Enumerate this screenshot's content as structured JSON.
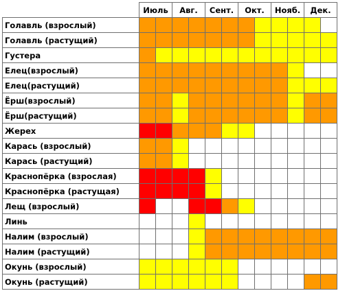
{
  "colors": {
    "peak": "#ff0000",
    "good": "#ff9900",
    "fair": "#ffff00",
    "none": "#ffffff"
  },
  "months": [
    "Июль",
    "Авг.",
    "Сент.",
    "Окт.",
    "Нояб.",
    "Дек."
  ],
  "rows": [
    {
      "name": "Голавль (взрослый)",
      "cells": [
        "good",
        "good",
        "good",
        "good",
        "good",
        "good",
        "good",
        "fair",
        "fair",
        "fair",
        "fair",
        "none"
      ]
    },
    {
      "name": "Голавль (растущий)",
      "cells": [
        "good",
        "good",
        "good",
        "good",
        "good",
        "good",
        "good",
        "fair",
        "fair",
        "fair",
        "fair",
        "fair"
      ]
    },
    {
      "name": "Густера",
      "cells": [
        "good",
        "fair",
        "fair",
        "fair",
        "fair",
        "fair",
        "fair",
        "fair",
        "fair",
        "fair",
        "fair",
        "fair"
      ]
    },
    {
      "name": "Елец(взрослый)",
      "cells": [
        "good",
        "good",
        "good",
        "good",
        "good",
        "good",
        "good",
        "good",
        "good",
        "fair",
        "none",
        "none"
      ]
    },
    {
      "name": "Елец(растущий)",
      "cells": [
        "good",
        "good",
        "good",
        "good",
        "good",
        "good",
        "good",
        "good",
        "good",
        "fair",
        "fair",
        "fair"
      ]
    },
    {
      "name": "Ёрш(взрослый)",
      "cells": [
        "good",
        "good",
        "fair",
        "good",
        "good",
        "good",
        "good",
        "good",
        "good",
        "fair",
        "good",
        "good"
      ]
    },
    {
      "name": "Ёрш(растущий)",
      "cells": [
        "good",
        "good",
        "fair",
        "good",
        "good",
        "good",
        "good",
        "good",
        "good",
        "fair",
        "good",
        "good"
      ]
    },
    {
      "name": "Жерех",
      "cells": [
        "peak",
        "peak",
        "good",
        "good",
        "good",
        "fair",
        "fair",
        "none",
        "none",
        "none",
        "none",
        "none"
      ]
    },
    {
      "name": "Карась (взрослый)",
      "cells": [
        "good",
        "good",
        "fair",
        "none",
        "none",
        "none",
        "none",
        "none",
        "none",
        "none",
        "none",
        "none"
      ]
    },
    {
      "name": "Карась (растущий)",
      "cells": [
        "good",
        "good",
        "fair",
        "none",
        "none",
        "none",
        "none",
        "none",
        "none",
        "none",
        "none",
        "none"
      ]
    },
    {
      "name": "Краснопёрка (взрослая)",
      "cells": [
        "peak",
        "peak",
        "peak",
        "peak",
        "fair",
        "none",
        "none",
        "none",
        "none",
        "none",
        "none",
        "none"
      ]
    },
    {
      "name": "Краснопёрка (растущая)",
      "cells": [
        "peak",
        "peak",
        "peak",
        "peak",
        "fair",
        "none",
        "none",
        "none",
        "none",
        "none",
        "none",
        "none"
      ]
    },
    {
      "name": "Лещ (взрослый)",
      "cells": [
        "peak",
        "none",
        "none",
        "peak",
        "peak",
        "good",
        "fair",
        "none",
        "none",
        "none",
        "none",
        "none"
      ]
    },
    {
      "name": "Линь",
      "cells": [
        "none",
        "none",
        "none",
        "fair",
        "none",
        "none",
        "none",
        "none",
        "none",
        "none",
        "none",
        "none"
      ]
    },
    {
      "name": "Налим (взрослый)",
      "cells": [
        "none",
        "none",
        "none",
        "fair",
        "good",
        "good",
        "good",
        "good",
        "good",
        "good",
        "good",
        "good"
      ]
    },
    {
      "name": "Налим (растущий)",
      "cells": [
        "none",
        "none",
        "none",
        "fair",
        "good",
        "good",
        "good",
        "good",
        "good",
        "good",
        "good",
        "good"
      ]
    },
    {
      "name": "Окунь (взрослый)",
      "cells": [
        "fair",
        "fair",
        "fair",
        "fair",
        "fair",
        "fair",
        "none",
        "none",
        "none",
        "none",
        "none",
        "none"
      ]
    },
    {
      "name": "Окунь (растущий)",
      "cells": [
        "fair",
        "fair",
        "fair",
        "fair",
        "fair",
        "fair",
        "none",
        "none",
        "none",
        "none",
        "good",
        "good"
      ]
    }
  ]
}
